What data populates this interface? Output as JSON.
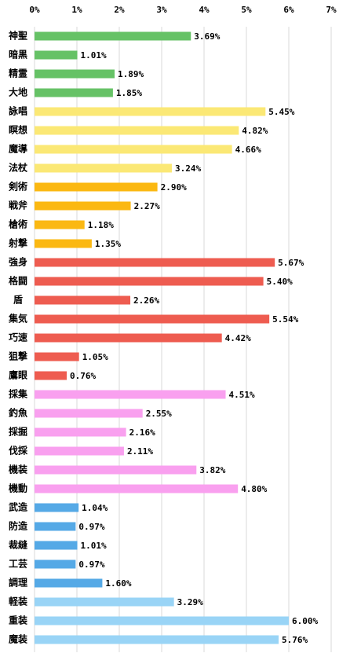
{
  "chart_data": {
    "type": "bar",
    "orientation": "horizontal",
    "categories": [
      "神聖",
      "暗黒",
      "精霊",
      "大地",
      "詠唱",
      "瞑想",
      "魔導",
      "法杖",
      "剣術",
      "戦斧",
      "槍術",
      "射撃",
      "強身",
      "格闘",
      "盾",
      "集気",
      "巧速",
      "狙撃",
      "鷹眼",
      "採集",
      "釣魚",
      "採掘",
      "伐採",
      "機装",
      "機動",
      "武造",
      "防造",
      "裁縫",
      "工芸",
      "調理",
      "軽装",
      "重装",
      "魔装"
    ],
    "values": [
      3.69,
      1.01,
      1.89,
      1.85,
      5.45,
      4.82,
      4.66,
      3.24,
      2.9,
      2.27,
      1.18,
      1.35,
      5.67,
      5.4,
      2.26,
      5.54,
      4.42,
      1.05,
      0.76,
      4.51,
      2.55,
      2.16,
      2.11,
      3.82,
      4.8,
      1.04,
      0.97,
      1.01,
      0.97,
      1.6,
      3.29,
      6.0,
      5.76
    ],
    "value_labels": [
      "3.69%",
      "1.01%",
      "1.89%",
      "1.85%",
      "5.45%",
      "4.82%",
      "4.66%",
      "3.24%",
      "2.90%",
      "2.27%",
      "1.18%",
      "1.35%",
      "5.67%",
      "5.40%",
      "2.26%",
      "5.54%",
      "4.42%",
      "1.05%",
      "0.76%",
      "4.51%",
      "2.55%",
      "2.16%",
      "2.11%",
      "3.82%",
      "4.80%",
      "1.04%",
      "0.97%",
      "1.01%",
      "0.97%",
      "1.60%",
      "3.29%",
      "6.00%",
      "5.76%"
    ],
    "colors": [
      "#66c266",
      "#66c266",
      "#66c266",
      "#66c266",
      "#fbe875",
      "#fbe875",
      "#fbe875",
      "#fbe875",
      "#fbb812",
      "#fbb812",
      "#fbb812",
      "#fbb812",
      "#ee5c50",
      "#ee5c50",
      "#ee5c50",
      "#ee5c50",
      "#ee5c50",
      "#ee5c50",
      "#ee5c50",
      "#f9a0ef",
      "#f9a0ef",
      "#f9a0ef",
      "#f9a0ef",
      "#f9a0ef",
      "#f9a0ef",
      "#55a9e6",
      "#55a9e6",
      "#55a9e6",
      "#55a9e6",
      "#55a9e6",
      "#99d4f6",
      "#99d4f6",
      "#99d4f6"
    ],
    "xlim": [
      0,
      7
    ],
    "xticks": [
      {
        "value": 0,
        "label": "0%"
      },
      {
        "value": 1,
        "label": "1%"
      },
      {
        "value": 2,
        "label": "2%"
      },
      {
        "value": 3,
        "label": "3%"
      },
      {
        "value": 4,
        "label": "4%"
      },
      {
        "value": 5,
        "label": "5%"
      },
      {
        "value": 6,
        "label": "6%"
      },
      {
        "value": 7,
        "label": "7%"
      }
    ],
    "grid": true
  }
}
